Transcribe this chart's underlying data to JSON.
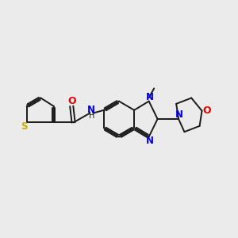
{
  "bg_color": "#ebebeb",
  "bond_color": "#1a1a1a",
  "S_color": "#ccaa00",
  "N_color": "#0000ee",
  "O_color": "#ee0000",
  "NH_color": "#008080",
  "figsize": [
    3.0,
    3.0
  ],
  "dpi": 100,
  "lw": 1.4,
  "xlim": [
    0,
    10
  ],
  "ylim": [
    0,
    10
  ]
}
